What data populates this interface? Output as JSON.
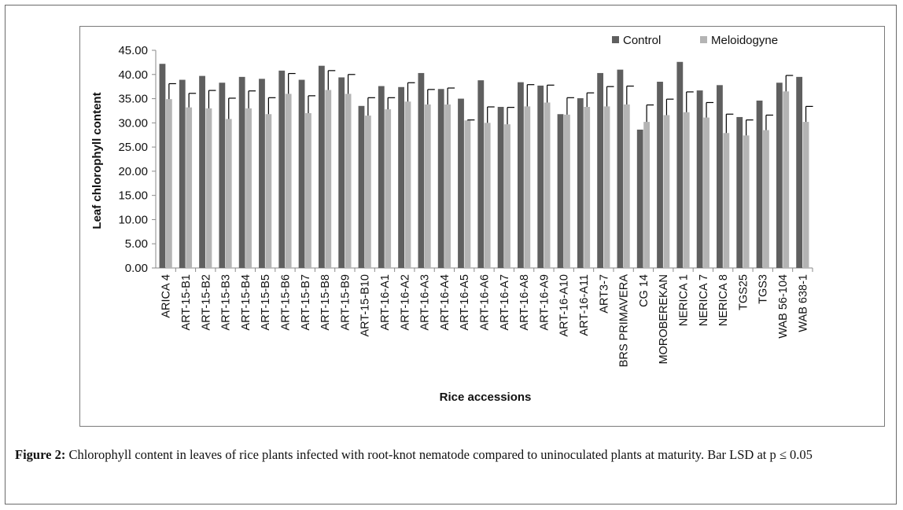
{
  "caption": {
    "label": "Figure 2:",
    "text": " Chlorophyll content in leaves of rice plants infected with root-knot nematode compared to uninoculated plants at maturity. Bar LSD at p ≤ 0.05"
  },
  "chart_data": {
    "type": "bar",
    "xlabel": "Rice accessions",
    "ylabel": "Leaf chlorophyll content",
    "ylim": [
      0,
      45
    ],
    "yticks": [
      "0.00",
      "5.00",
      "10.00",
      "15.00",
      "20.00",
      "25.00",
      "30.00",
      "35.00",
      "40.00",
      "45.00"
    ],
    "legend_position": "top-right",
    "categories": [
      "ARICA 4",
      "ART-15-B1",
      "ART-15-B2",
      "ART-15-B3",
      "ART-15-B4",
      "ART-15-B5",
      "ART-15-B6",
      "ART-15-B7",
      "ART-15-B8",
      "ART-15-B9",
      "ART-15-B10",
      "ART-16-A1",
      "ART-16-A2",
      "ART-16-A3",
      "ART-16-A4",
      "ART-16-A5",
      "ART-16-A6",
      "ART-16-A7",
      "ART-16-A8",
      "ART-16-A9",
      "ART-16-A10",
      "ART-16-A11",
      "ART3-7",
      "BRS PRIMAVERA",
      "CG 14",
      "MOROBEREKAN",
      "NERICA 1",
      "NERICA 7",
      "NERICA 8",
      "TGS25",
      "TGS3",
      "WAB 56-104",
      "WAB 638-1"
    ],
    "series": [
      {
        "name": "Control",
        "color": "#5f5f5f",
        "values": [
          42.2,
          38.9,
          39.7,
          38.3,
          39.5,
          39.1,
          40.8,
          38.9,
          41.8,
          39.4,
          33.5,
          37.6,
          37.4,
          40.3,
          37.0,
          35.0,
          38.8,
          33.3,
          38.4,
          37.7,
          31.8,
          35.1,
          40.3,
          41.0,
          28.6,
          38.5,
          42.6,
          36.7,
          37.8,
          31.2,
          34.6,
          38.3,
          39.5
        ],
        "errors": [
          null,
          null,
          null,
          null,
          null,
          null,
          null,
          null,
          null,
          null,
          null,
          null,
          null,
          null,
          null,
          null,
          null,
          null,
          null,
          null,
          null,
          null,
          null,
          null,
          null,
          null,
          null,
          null,
          null,
          null,
          null,
          null,
          null
        ]
      },
      {
        "name": "Meloidogyne",
        "color": "#b4b4b4",
        "values": [
          34.9,
          33.2,
          33.0,
          30.8,
          33.0,
          31.8,
          36.0,
          32.0,
          36.8,
          36.0,
          31.5,
          32.8,
          34.4,
          33.8,
          33.8,
          30.5,
          30.0,
          29.7,
          33.4,
          34.2,
          31.7,
          33.3,
          33.4,
          33.8,
          30.2,
          31.6,
          32.2,
          31.1,
          27.9,
          27.4,
          28.5,
          36.5,
          30.2
        ],
        "errors": [
          3.2,
          2.9,
          3.7,
          4.3,
          3.6,
          3.4,
          4.2,
          3.6,
          4.0,
          4.0,
          3.7,
          2.4,
          3.9,
          3.1,
          3.4,
          0.1,
          3.3,
          3.5,
          4.5,
          3.6,
          3.5,
          2.9,
          4.1,
          3.8,
          3.5,
          3.3,
          4.2,
          3.1,
          3.9,
          3.2,
          3.1,
          3.3,
          3.2
        ]
      }
    ]
  }
}
